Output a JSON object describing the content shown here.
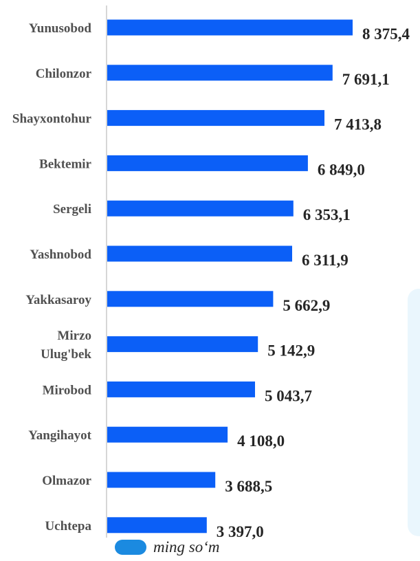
{
  "chart_data": {
    "type": "bar",
    "orientation": "horizontal",
    "categories": [
      "Yunusobod",
      "Chilonzor",
      "Shayxontohur",
      "Bektemir",
      "Sergeli",
      "Yashnobod",
      "Yakkasaroy",
      "Mirzo Ulug'bek",
      "Mirobod",
      "Yangihayot",
      "Olmazor",
      "Uchtepa"
    ],
    "category_lines": [
      [
        "Yunusobod"
      ],
      [
        "Chilonzor"
      ],
      [
        "Shayxontohur"
      ],
      [
        "Bektemir"
      ],
      [
        "Sergeli"
      ],
      [
        "Yashnobod"
      ],
      [
        "Yakkasaroy"
      ],
      [
        "Mirzo",
        "Ulug'bek"
      ],
      [
        "Mirobod"
      ],
      [
        "Yangihayot"
      ],
      [
        "Olmazor"
      ],
      [
        "Uchtepa"
      ]
    ],
    "values": [
      8375.4,
      7691.1,
      7413.8,
      6849.0,
      6353.1,
      6311.9,
      5662.9,
      5142.9,
      5043.7,
      4108.0,
      3688.5,
      3397.0
    ],
    "value_labels": [
      "8 375,4",
      "7 691,1",
      "7 413,8",
      "6 849,0",
      "6 353,1",
      "6 311,9",
      "5 662,9",
      "5 142,9",
      "5 043,7",
      "4 108,0",
      "3 688,5",
      "3 397,0"
    ],
    "xlim": [
      0,
      8375.4
    ],
    "grid": false,
    "legend": {
      "placement": "bottom",
      "entries": [
        {
          "label": "ming so‘m",
          "color": "#1b8ae0"
        }
      ]
    },
    "bar_color": "#0b5ff7"
  }
}
